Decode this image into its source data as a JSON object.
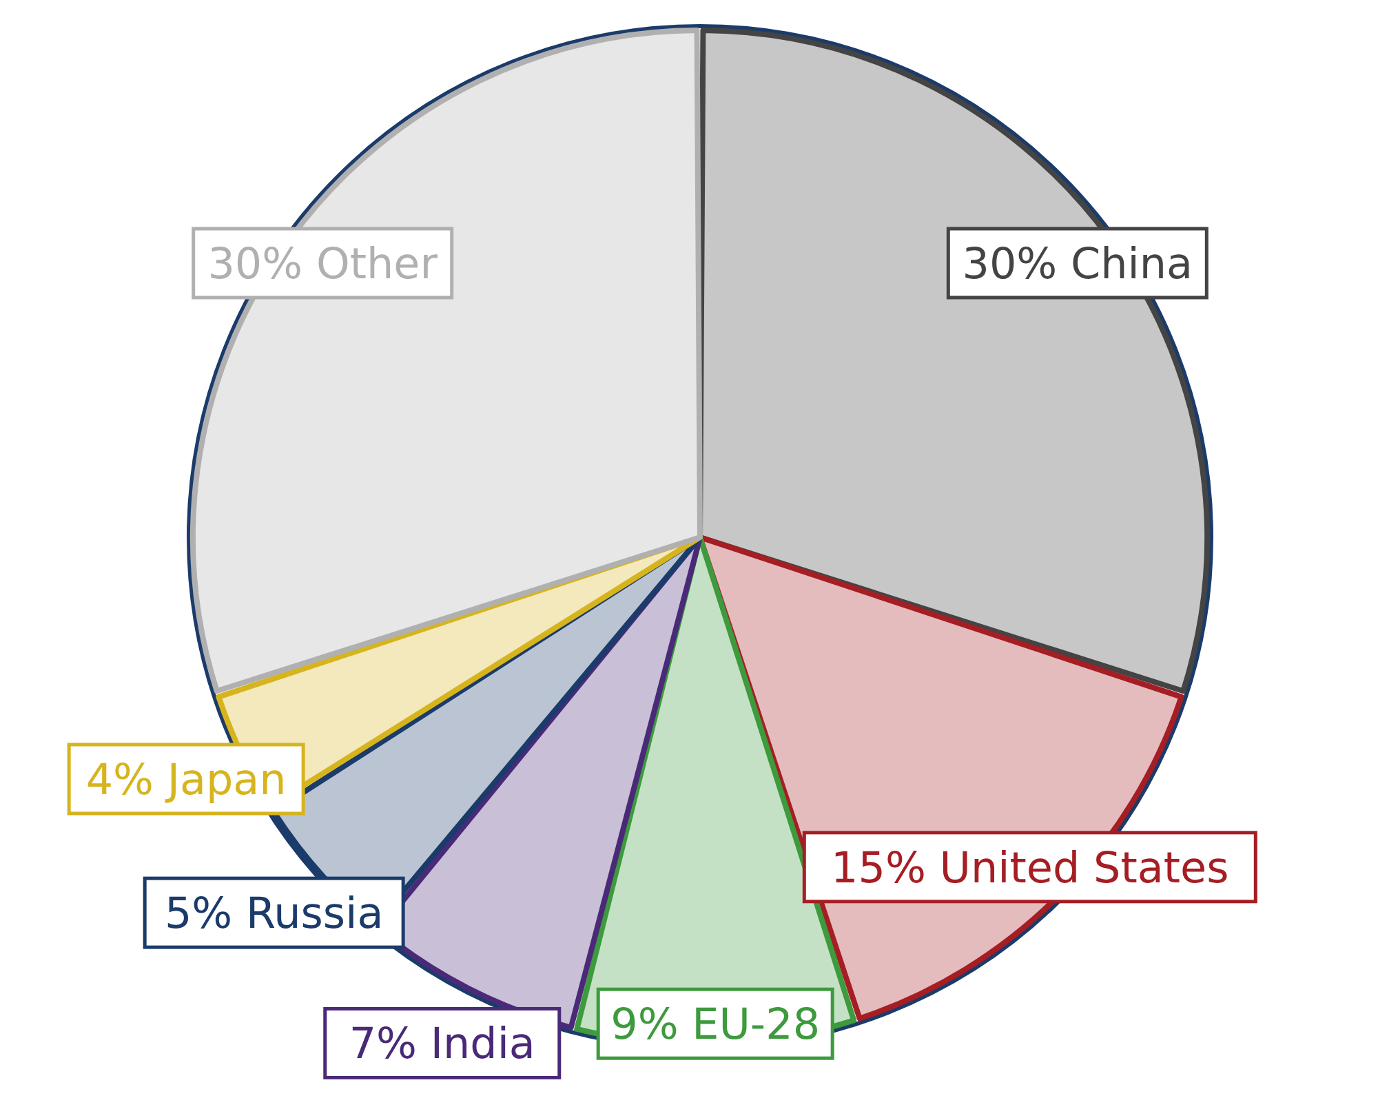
{
  "chart_data": {
    "type": "pie",
    "categories": [
      "China",
      "United States",
      "EU-28",
      "India",
      "Russia",
      "Japan",
      "Other"
    ],
    "values": [
      30,
      15,
      9,
      7,
      5,
      4,
      30
    ],
    "value_labels": [
      "30%",
      "15%",
      "9%",
      "7%",
      "5%",
      "4%",
      "30%"
    ],
    "colors": [
      "#444444",
      "#a51e24",
      "#3d9a3d",
      "#4a2a78",
      "#1b3b6b",
      "#d6b41e",
      "#b0b0b0"
    ]
  }
}
